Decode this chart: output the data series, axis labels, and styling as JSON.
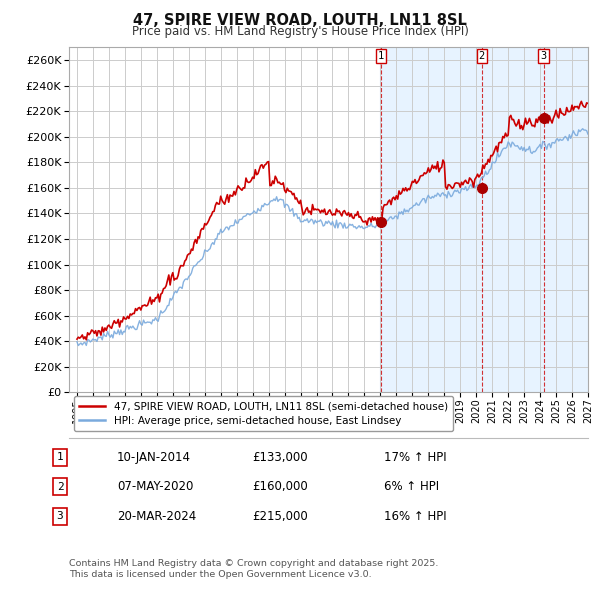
{
  "title": "47, SPIRE VIEW ROAD, LOUTH, LN11 8SL",
  "subtitle": "Price paid vs. HM Land Registry's House Price Index (HPI)",
  "ylim": [
    0,
    270000
  ],
  "ytick_step": 20000,
  "background_color": "#ffffff",
  "plot_bg_color": "#ffffff",
  "grid_color": "#cccccc",
  "sold_color": "#cc0000",
  "hpi_color": "#7aaadd",
  "shade_color": "#ddeeff",
  "legend_entries": [
    "47, SPIRE VIEW ROAD, LOUTH, LN11 8SL (semi-detached house)",
    "HPI: Average price, semi-detached house, East Lindsey"
  ],
  "transactions": [
    {
      "num": 1,
      "date": "10-JAN-2014",
      "price": 133000,
      "hpi_pct": "17% ↑ HPI",
      "x_year": 2014.03
    },
    {
      "num": 2,
      "date": "07-MAY-2020",
      "price": 160000,
      "hpi_pct": "6% ↑ HPI",
      "x_year": 2020.35
    },
    {
      "num": 3,
      "date": "20-MAR-2024",
      "price": 215000,
      "hpi_pct": "16% ↑ HPI",
      "x_year": 2024.22
    }
  ],
  "footer": "Contains HM Land Registry data © Crown copyright and database right 2025.\nThis data is licensed under the Open Government Licence v3.0.",
  "xmin": 1994.5,
  "xmax": 2027.0,
  "hpi_shaded_start": 2014.0
}
